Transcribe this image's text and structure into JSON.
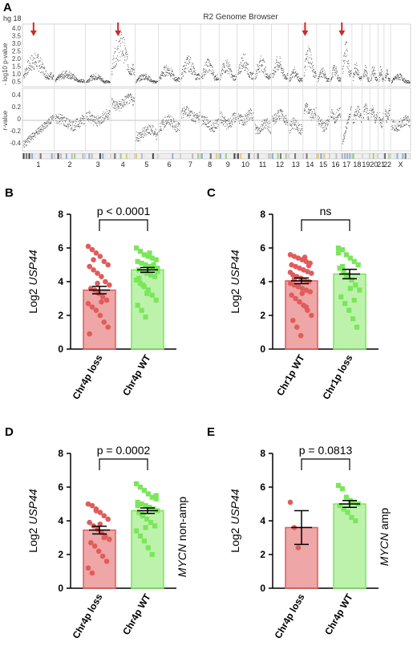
{
  "panel_a": {
    "label": "A",
    "genome_build": "hg 18",
    "title": "R2 Genome Browser",
    "top_track": {
      "ylabel": "- log10 p-value",
      "ticks": [
        "4.0",
        "3.5",
        "3.0",
        "2.5",
        "2.0",
        "1.5",
        "1.0",
        "0.5"
      ],
      "ylim": [
        0.5,
        4.0
      ]
    },
    "bottom_track": {
      "ylabel": "r-value",
      "ticks": [
        "0.4",
        "0.2",
        "0",
        "-0.2",
        "-0.4"
      ],
      "ylim": [
        -0.5,
        0.5
      ]
    },
    "chromosomes": [
      "1",
      "2",
      "3",
      "4",
      "5",
      "6",
      "7",
      "8",
      "9",
      "10",
      "11",
      "12",
      "13",
      "14",
      "15",
      "16",
      "17",
      "18",
      "19",
      "20",
      "21",
      "22",
      "X"
    ],
    "arrow_chromosomes": [
      "1",
      "4",
      "14",
      "17"
    ],
    "arrow_color": "#cc2a2a"
  },
  "chart_data": [
    {
      "panel": "B",
      "type": "bar",
      "ylabel_prefix": "Log2 ",
      "ylabel_italic": "USP44",
      "yticks": [
        "0",
        "2",
        "4",
        "6",
        "8"
      ],
      "ylim": [
        0,
        8
      ],
      "categories": [
        "Chr4p loss",
        "Chr4p WT"
      ],
      "means": [
        3.5,
        4.7
      ],
      "sem": [
        0.22,
        0.14
      ],
      "colors": [
        "#e05c5c",
        "#7be65a"
      ],
      "stat": "p < 0.0001",
      "side_label_italic": "",
      "side_label_rest": "",
      "points": [
        [
          6.1,
          5.9,
          5.7,
          5.5,
          5.2,
          5.0,
          4.9,
          4.7,
          4.5,
          4.3,
          4.0,
          3.8,
          3.6,
          3.5,
          3.3,
          3.1,
          2.9,
          2.7,
          2.5,
          2.3,
          2.0,
          1.6,
          1.3,
          0.9,
          5.3,
          3.9,
          2.8
        ],
        [
          6.0,
          5.8,
          5.6,
          5.5,
          5.4,
          5.3,
          5.2,
          5.1,
          5.0,
          4.9,
          4.9,
          4.8,
          4.7,
          4.6,
          4.5,
          4.4,
          4.3,
          4.1,
          3.9,
          3.7,
          3.5,
          3.2,
          2.9,
          2.6,
          2.3,
          1.9,
          5.7,
          5.0,
          4.6,
          4.2,
          3.8,
          3.3
        ]
      ]
    },
    {
      "panel": "C",
      "type": "bar",
      "ylabel_prefix": "Log2 ",
      "ylabel_italic": "USP44",
      "yticks": [
        "0",
        "2",
        "4",
        "6",
        "8"
      ],
      "ylim": [
        0,
        8
      ],
      "categories": [
        "Chr1p WT",
        "Chr1p loss"
      ],
      "means": [
        4.05,
        4.45
      ],
      "sem": [
        0.17,
        0.28
      ],
      "colors": [
        "#e05c5c",
        "#7be65a"
      ],
      "stat": "ns",
      "side_label_italic": "",
      "side_label_rest": "",
      "points": [
        [
          5.6,
          5.5,
          5.4,
          5.3,
          5.2,
          5.1,
          5.0,
          4.9,
          4.8,
          4.7,
          4.6,
          4.5,
          4.4,
          4.3,
          4.2,
          4.1,
          4.0,
          3.9,
          3.8,
          3.7,
          3.6,
          3.5,
          3.4,
          3.2,
          3.0,
          2.8,
          2.6,
          2.3,
          2.0,
          1.7,
          1.3,
          0.8,
          5.45,
          4.95,
          4.55,
          4.15,
          3.75,
          3.3,
          2.5
        ],
        [
          6.0,
          5.9,
          5.6,
          5.4,
          5.2,
          5.0,
          4.8,
          4.6,
          4.4,
          4.1,
          3.8,
          3.5,
          3.1,
          2.7,
          2.3,
          1.8,
          1.3,
          5.7,
          4.9,
          4.3,
          3.6,
          2.9
        ]
      ]
    },
    {
      "panel": "D",
      "type": "bar",
      "ylabel_prefix": "Log2 ",
      "ylabel_italic": "USP44",
      "yticks": [
        "0",
        "2",
        "4",
        "6",
        "8"
      ],
      "ylim": [
        0,
        8
      ],
      "categories": [
        "Chr4p loss",
        "Chr4p WT"
      ],
      "means": [
        3.45,
        4.6
      ],
      "sem": [
        0.23,
        0.16
      ],
      "colors": [
        "#e05c5c",
        "#7be65a"
      ],
      "stat": "p = 0.0002",
      "side_label_italic": "MYCN",
      "side_label_rest": " non-amp",
      "points": [
        [
          5.0,
          4.9,
          4.7,
          4.5,
          4.3,
          4.1,
          3.9,
          3.7,
          3.5,
          3.3,
          3.1,
          2.9,
          2.7,
          2.5,
          2.2,
          1.9,
          1.6,
          1.2,
          0.9,
          4.6,
          3.8,
          3.0
        ],
        [
          6.2,
          6.0,
          5.8,
          5.6,
          5.4,
          5.3,
          5.1,
          5.0,
          4.9,
          4.8,
          4.7,
          4.6,
          4.5,
          4.3,
          4.1,
          3.9,
          3.7,
          3.4,
          3.1,
          2.8,
          2.4,
          2.0,
          5.5,
          4.9,
          4.4,
          3.6
        ]
      ]
    },
    {
      "panel": "E",
      "type": "bar",
      "ylabel_prefix": "Log2 ",
      "ylabel_italic": "USP44",
      "yticks": [
        "0",
        "2",
        "4",
        "6",
        "8"
      ],
      "ylim": [
        0,
        8
      ],
      "categories": [
        "Chr4p loss",
        "Chr4p WT"
      ],
      "means": [
        3.6,
        5.0
      ],
      "sem": [
        1.0,
        0.2
      ],
      "colors": [
        "#e05c5c",
        "#7be65a"
      ],
      "stat": "p = 0.0813",
      "side_label_italic": "MYCN",
      "side_label_rest": " amp",
      "points": [
        [
          5.1,
          3.6,
          2.4
        ],
        [
          6.1,
          5.9,
          5.4,
          5.2,
          5.1,
          5.0,
          4.9,
          4.7,
          4.5,
          4.2,
          4.0
        ]
      ]
    }
  ]
}
